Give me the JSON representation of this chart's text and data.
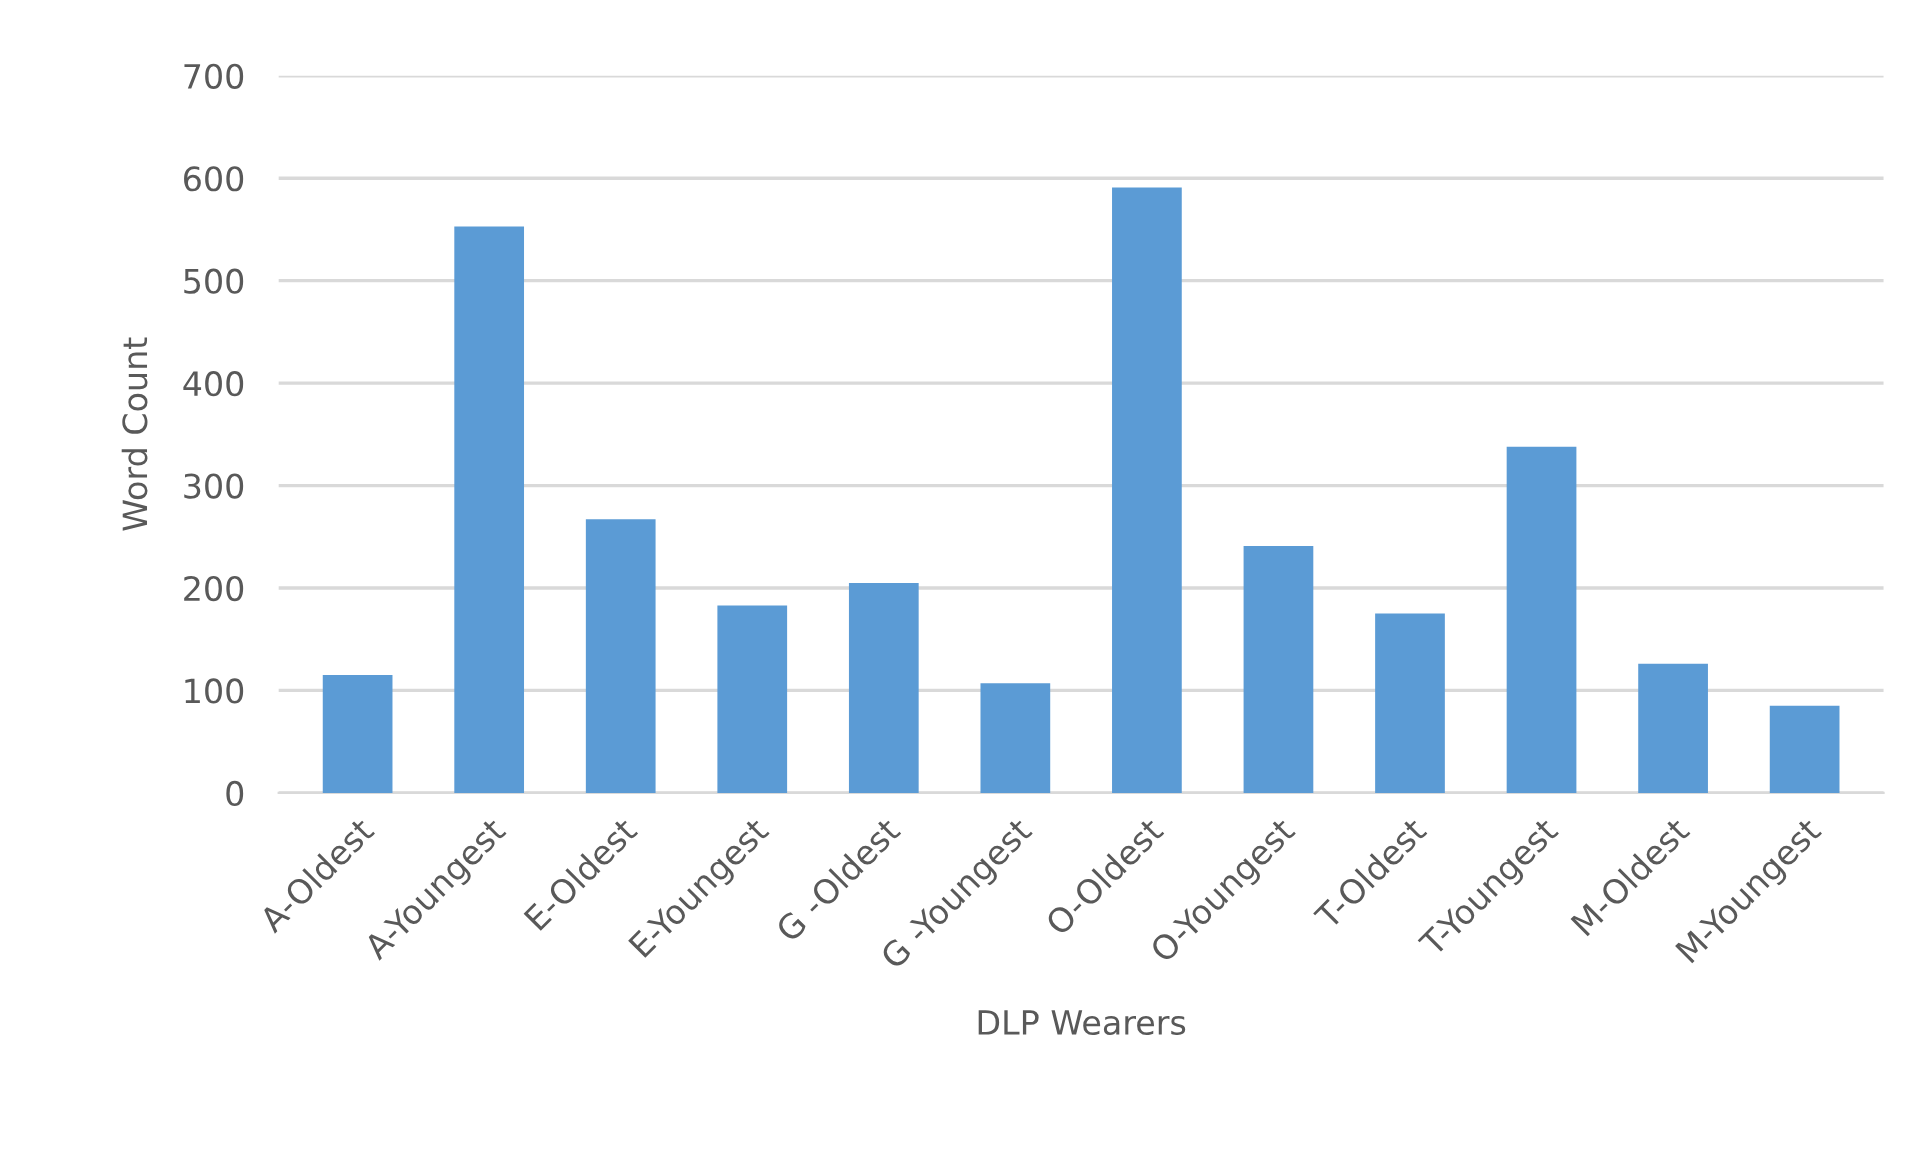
{
  "chart_data": {
    "type": "bar",
    "xlabel": "DLP Wearers",
    "ylabel": "Word Count",
    "categories": [
      "A-Oldest",
      "A-Youngest",
      "E-Oldest",
      "E-Youngest",
      "G -Oldest",
      "G -Youngest",
      "O-Oldest",
      "O-Youngest",
      "T-Oldest",
      "T-Youngest",
      "M-Oldest",
      "M-Youngest"
    ],
    "values": [
      115,
      553,
      267,
      183,
      205,
      107,
      591,
      241,
      175,
      338,
      126,
      85
    ],
    "color": "#5b9bd5",
    "ylim": [
      0,
      700
    ],
    "yticks": [
      0,
      100,
      200,
      300,
      400,
      500,
      600,
      700
    ],
    "grid": "y"
  }
}
